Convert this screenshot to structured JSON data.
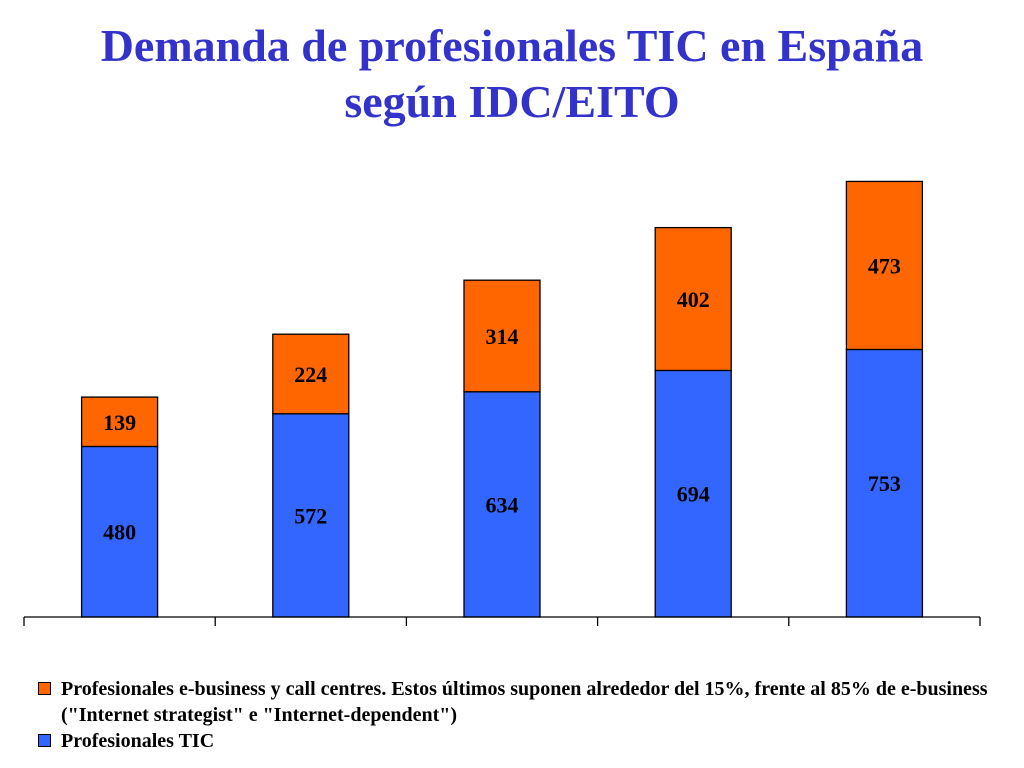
{
  "title": {
    "line1": "Demanda de profesionales TIC en España",
    "line2": "según IDC/EITO"
  },
  "colors": {
    "title": "#3333cc",
    "tic": "#3366ff",
    "ebusiness": "#ff6600",
    "axis": "#000000"
  },
  "legend": {
    "ebusiness_label": "Profesionales e-business y call centres. Estos últimos suponen alrededor del 15%, frente al 85% de e-business (\"Internet strategist\" e \"Internet-dependent\")",
    "tic_label": "Profesionales TIC"
  },
  "chart_data": {
    "type": "bar",
    "stacked": true,
    "categories": [
      "",
      "",
      "",
      "",
      ""
    ],
    "series": [
      {
        "name": "Profesionales TIC",
        "color": "#3366ff",
        "values": [
          480,
          572,
          634,
          694,
          753
        ]
      },
      {
        "name": "Profesionales e-business y call centres. Estos últimos suponen alrededor del 15%, frente al 85% de e-business (\"Internet strategist\" e \"Internet-dependent\")",
        "color": "#ff6600",
        "values": [
          139,
          224,
          314,
          402,
          473
        ]
      }
    ],
    "title": "Demanda de profesionales TIC en España según IDC/EITO",
    "xlabel": "",
    "ylabel": "",
    "ylim": [
      0,
      1230
    ],
    "grid": false,
    "legend_position": "bottom",
    "data_labels": true
  }
}
